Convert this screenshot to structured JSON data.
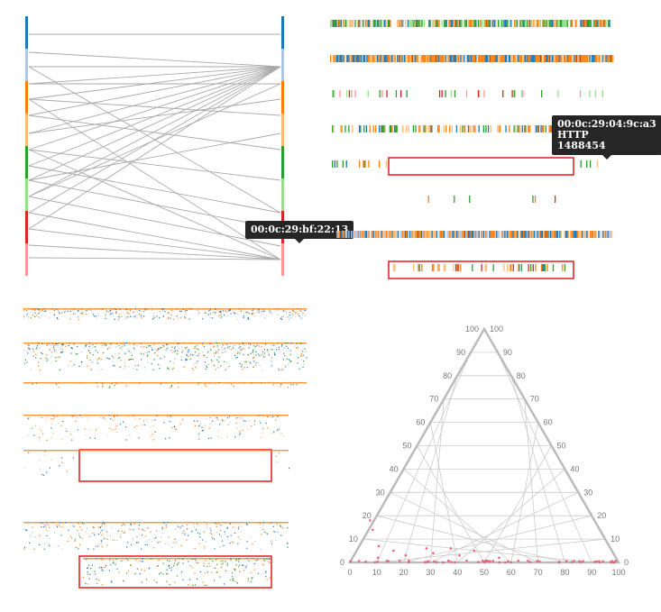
{
  "palette": {
    "blue": "#1f77b4",
    "light_blue": "#aec7e8",
    "orange": "#ff7f0e",
    "light_orange": "#ffbb78",
    "green": "#2ca02c",
    "light_green": "#98df8a",
    "red": "#d62728",
    "pink": "#ff9896",
    "highlight": "#e31a1c",
    "edge": "#aaaaaa"
  },
  "tooltips": {
    "mac_tooltip": {
      "line1": "00:0c:29:bf:22:13"
    },
    "packet_tooltip": {
      "line1": "00:0c:29:04:9c:a3",
      "line2": "HTTP",
      "line3": "1488454"
    }
  },
  "ternary": {
    "left_axis_ticks": [
      "100",
      "90",
      "80",
      "70",
      "60",
      "50",
      "40",
      "30",
      "20",
      "10",
      "0"
    ],
    "right_axis_ticks": [
      "100",
      "90",
      "80",
      "70",
      "60",
      "50",
      "40",
      "30",
      "20",
      "10",
      "0"
    ],
    "bottom_axis_ticks": [
      "0",
      "10",
      "20",
      "30",
      "40",
      "50",
      "60",
      "70",
      "80",
      "90",
      "100"
    ]
  }
}
